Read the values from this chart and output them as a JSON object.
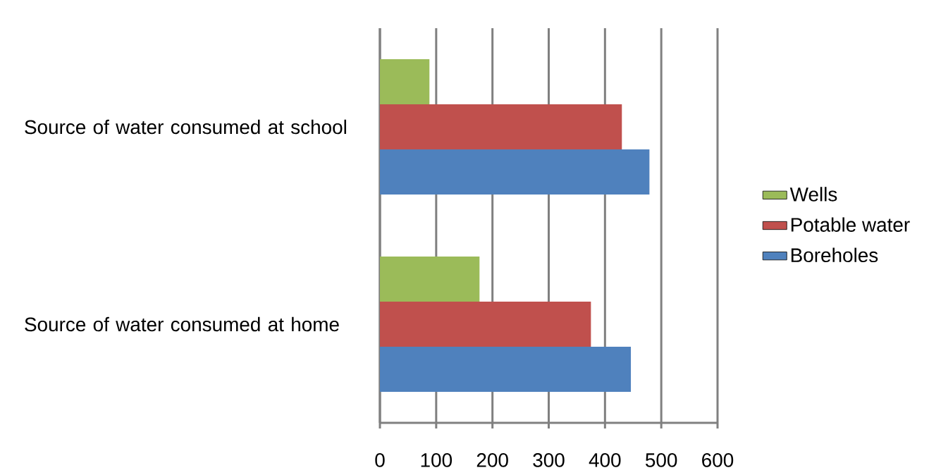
{
  "chart_data": {
    "type": "bar",
    "orientation": "horizontal",
    "categories": [
      "Source of water consumed at school",
      "Source of water consumed at home"
    ],
    "series": [
      {
        "name": "Boreholes",
        "color": "#4f81bd",
        "values": [
          479,
          446
        ]
      },
      {
        "name": "Potable water",
        "color": "#c0504d",
        "values": [
          430,
          375
        ]
      },
      {
        "name": "Wells",
        "color": "#9bbb59",
        "values": [
          88,
          177
        ]
      }
    ],
    "xlim": [
      0,
      600
    ],
    "xticks": [
      0,
      100,
      200,
      300,
      400,
      500,
      600
    ],
    "grid": "x",
    "legend": "right"
  }
}
